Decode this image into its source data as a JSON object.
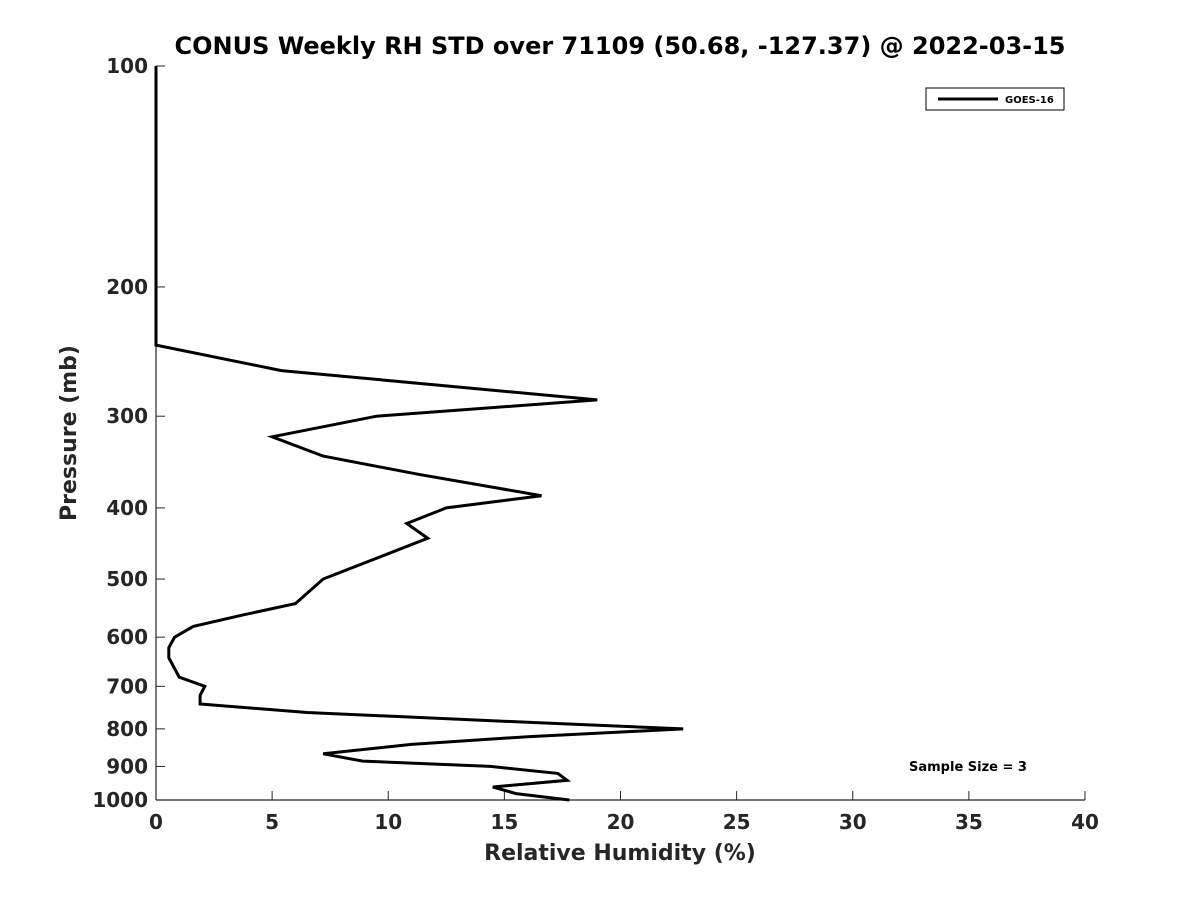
{
  "chart_data": {
    "type": "line",
    "title": "CONUS Weekly RH STD over 71109 (50.68, -127.37) @ 2022-03-15",
    "xlabel": "Relative Humidity (%)",
    "ylabel": "Pressure (mb)",
    "xlim": [
      0,
      40
    ],
    "ylim": [
      100,
      1000
    ],
    "y_scale": "log",
    "y_reversed": true,
    "x_ticks": [
      0,
      5,
      10,
      15,
      20,
      25,
      30,
      35,
      40
    ],
    "y_ticks": [
      100,
      200,
      300,
      400,
      500,
      600,
      700,
      800,
      900,
      1000
    ],
    "grid": false,
    "legend_position": "top-right",
    "series": [
      {
        "name": "GOES-16",
        "color": "#000000",
        "points": [
          {
            "rh": 0.0,
            "p": 100
          },
          {
            "rh": 0.0,
            "p": 150
          },
          {
            "rh": 0.0,
            "p": 200
          },
          {
            "rh": 0.0,
            "p": 240
          },
          {
            "rh": 5.4,
            "p": 260
          },
          {
            "rh": 19.0,
            "p": 285
          },
          {
            "rh": 9.5,
            "p": 300
          },
          {
            "rh": 5.0,
            "p": 320
          },
          {
            "rh": 7.2,
            "p": 340
          },
          {
            "rh": 11.3,
            "p": 360
          },
          {
            "rh": 16.6,
            "p": 385
          },
          {
            "rh": 12.5,
            "p": 400
          },
          {
            "rh": 10.8,
            "p": 420
          },
          {
            "rh": 11.7,
            "p": 440
          },
          {
            "rh": 7.2,
            "p": 500
          },
          {
            "rh": 6.0,
            "p": 540
          },
          {
            "rh": 3.7,
            "p": 560
          },
          {
            "rh": 1.6,
            "p": 580
          },
          {
            "rh": 0.8,
            "p": 600
          },
          {
            "rh": 0.55,
            "p": 620
          },
          {
            "rh": 0.55,
            "p": 640
          },
          {
            "rh": 1.0,
            "p": 680
          },
          {
            "rh": 2.1,
            "p": 700
          },
          {
            "rh": 1.9,
            "p": 720
          },
          {
            "rh": 1.9,
            "p": 740
          },
          {
            "rh": 6.5,
            "p": 760
          },
          {
            "rh": 16.5,
            "p": 785
          },
          {
            "rh": 22.7,
            "p": 800
          },
          {
            "rh": 16.0,
            "p": 820
          },
          {
            "rh": 11.0,
            "p": 840
          },
          {
            "rh": 7.2,
            "p": 865
          },
          {
            "rh": 8.9,
            "p": 885
          },
          {
            "rh": 14.4,
            "p": 900
          },
          {
            "rh": 17.3,
            "p": 920
          },
          {
            "rh": 17.7,
            "p": 940
          },
          {
            "rh": 14.5,
            "p": 960
          },
          {
            "rh": 15.5,
            "p": 980
          },
          {
            "rh": 17.8,
            "p": 1000
          }
        ]
      }
    ],
    "annotations": [
      {
        "text": "Sample Size = 3",
        "position": "bottom-right"
      }
    ]
  }
}
